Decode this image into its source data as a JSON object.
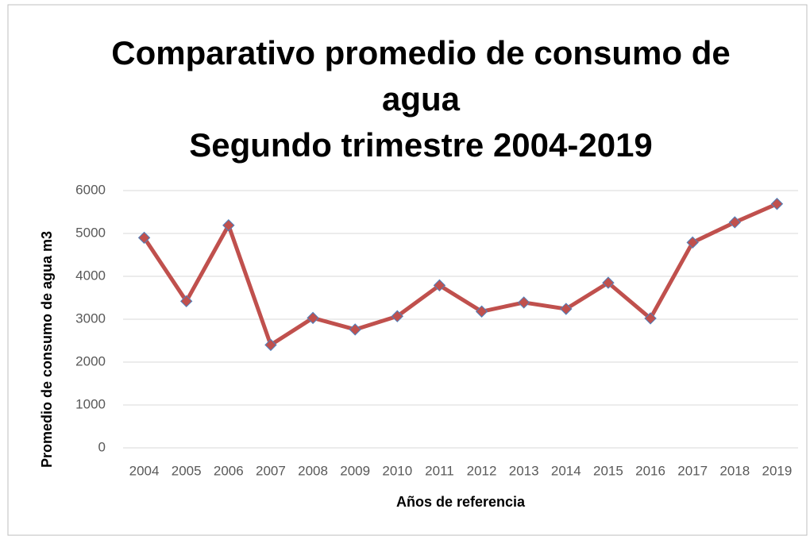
{
  "chart_data": {
    "type": "line",
    "title": "Comparativo promedio de consumo de agua",
    "subtitle": "Segundo trimestre 2004-2019",
    "x_label": "Años de referencia",
    "y_label": "Promedio de consumo de agua m3",
    "categories": [
      "2004",
      "2005",
      "2006",
      "2007",
      "2008",
      "2009",
      "2010",
      "2011",
      "2012",
      "2013",
      "2014",
      "2015",
      "2016",
      "2017",
      "2018",
      "2019"
    ],
    "values": [
      4900,
      3420,
      5190,
      2400,
      3030,
      2760,
      3070,
      3790,
      3180,
      3390,
      3240,
      3850,
      3020,
      4790,
      5260,
      5690
    ],
    "color": "#c0504d",
    "marker_edge_color": "#4f81bd",
    "ylim": [
      0,
      6000
    ],
    "yticks": [
      0,
      1000,
      2000,
      3000,
      4000,
      5000,
      6000
    ],
    "grid": true
  }
}
